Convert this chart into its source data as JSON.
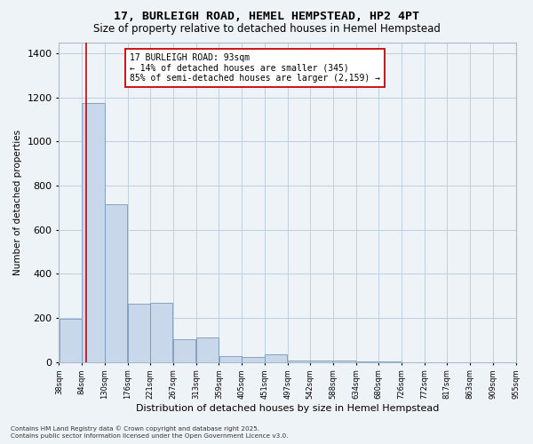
{
  "title": "17, BURLEIGH ROAD, HEMEL HEMPSTEAD, HP2 4PT",
  "subtitle": "Size of property relative to detached houses in Hemel Hempstead",
  "xlabel": "Distribution of detached houses by size in Hemel Hempstead",
  "ylabel": "Number of detached properties",
  "bar_color": "#c8d8ea",
  "bar_edge_color": "#7799bb",
  "grid_color": "#c0cfe0",
  "bg_color": "#eef3f8",
  "marker_line_color": "#cc0000",
  "marker_value": 93,
  "annotation_title": "17 BURLEIGH ROAD: 93sqm",
  "annotation_line1": "← 14% of detached houses are smaller (345)",
  "annotation_line2": "85% of semi-detached houses are larger (2,159) →",
  "annotation_box_color": "#ffffff",
  "annotation_box_edge": "#cc0000",
  "footer1": "Contains HM Land Registry data © Crown copyright and database right 2025.",
  "footer2": "Contains public sector information licensed under the Open Government Licence v3.0.",
  "bin_edges": [
    38,
    84,
    130,
    176,
    221,
    267,
    313,
    359,
    405,
    451,
    497,
    542,
    588,
    634,
    680,
    726,
    772,
    817,
    863,
    909,
    955
  ],
  "counts": [
    195,
    1175,
    715,
    265,
    270,
    105,
    110,
    28,
    22,
    35,
    8,
    8,
    8,
    2,
    2,
    0,
    0,
    0,
    0,
    0
  ],
  "ylim": [
    0,
    1450
  ],
  "yticks": [
    0,
    200,
    400,
    600,
    800,
    1000,
    1200,
    1400
  ]
}
